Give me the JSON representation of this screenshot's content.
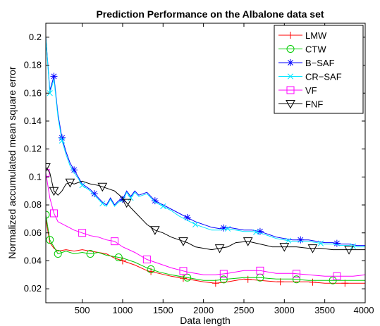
{
  "chart_data": {
    "type": "line",
    "title": "Prediction Performance on the Albalone data set",
    "xlabel": "Data length",
    "ylabel": "Normalized accumulated mean square error",
    "xlim": [
      50,
      4000
    ],
    "ylim": [
      0.01,
      0.21
    ],
    "xticks": [
      500,
      1000,
      1500,
      2000,
      2500,
      3000,
      3500,
      4000
    ],
    "yticks": [
      0.02,
      0.04,
      0.06,
      0.08,
      0.1,
      0.12,
      0.14,
      0.16,
      0.18,
      0.2
    ],
    "ytick_labels": [
      "0.02",
      "0.04",
      "0.06",
      "0.08",
      "0.1",
      "0.12",
      "0.14",
      "0.16",
      "0.18",
      "0.2"
    ],
    "grid": false,
    "legend_position": "top-right",
    "series": [
      {
        "name": "LMW",
        "color": "#ff0000",
        "marker": "plus",
        "x": [
          50,
          100,
          150,
          200,
          300,
          400,
          500,
          600,
          700,
          800,
          900,
          1000,
          1150,
          1300,
          1450,
          1600,
          1800,
          2000,
          2150,
          2300,
          2500,
          2700,
          2900,
          3100,
          3300,
          3500,
          3700,
          3850,
          4000
        ],
        "y": [
          0.07,
          0.053,
          0.049,
          0.047,
          0.048,
          0.047,
          0.048,
          0.047,
          0.046,
          0.045,
          0.042,
          0.04,
          0.037,
          0.033,
          0.031,
          0.029,
          0.027,
          0.025,
          0.024,
          0.025,
          0.027,
          0.026,
          0.025,
          0.025,
          0.025,
          0.024,
          0.024,
          0.024,
          0.024
        ]
      },
      {
        "name": "CTW",
        "color": "#00cc00",
        "marker": "circle",
        "x": [
          50,
          100,
          150,
          200,
          300,
          400,
          500,
          600,
          700,
          800,
          900,
          1000,
          1150,
          1300,
          1450,
          1600,
          1800,
          2000,
          2150,
          2300,
          2500,
          2700,
          2900,
          3100,
          3300,
          3500,
          3700,
          3850,
          4000
        ],
        "y": [
          0.073,
          0.055,
          0.05,
          0.045,
          0.047,
          0.045,
          0.046,
          0.045,
          0.046,
          0.044,
          0.043,
          0.042,
          0.039,
          0.035,
          0.032,
          0.03,
          0.028,
          0.026,
          0.026,
          0.027,
          0.028,
          0.028,
          0.027,
          0.027,
          0.026,
          0.026,
          0.026,
          0.026,
          0.026
        ]
      },
      {
        "name": "B−SAF",
        "color": "#0000ff",
        "marker": "star",
        "x": [
          50,
          100,
          150,
          200,
          250,
          300,
          350,
          400,
          450,
          500,
          550,
          600,
          650,
          700,
          750,
          800,
          850,
          900,
          950,
          1000,
          1050,
          1100,
          1150,
          1200,
          1250,
          1300,
          1350,
          1400,
          1500,
          1600,
          1700,
          1800,
          1900,
          2000,
          2100,
          2200,
          2300,
          2400,
          2500,
          2600,
          2700,
          2800,
          2900,
          3000,
          3100,
          3200,
          3300,
          3400,
          3500,
          3600,
          3700,
          3800,
          3900,
          4000
        ],
        "y": [
          0.2,
          0.162,
          0.172,
          0.145,
          0.128,
          0.118,
          0.11,
          0.105,
          0.1,
          0.095,
          0.093,
          0.091,
          0.088,
          0.085,
          0.082,
          0.08,
          0.085,
          0.08,
          0.083,
          0.084,
          0.09,
          0.086,
          0.09,
          0.087,
          0.088,
          0.089,
          0.086,
          0.083,
          0.08,
          0.077,
          0.074,
          0.071,
          0.068,
          0.066,
          0.064,
          0.063,
          0.064,
          0.063,
          0.062,
          0.062,
          0.061,
          0.059,
          0.057,
          0.056,
          0.055,
          0.055,
          0.055,
          0.054,
          0.053,
          0.053,
          0.052,
          0.052,
          0.051,
          0.051
        ]
      },
      {
        "name": "CR−SAF",
        "color": "#00e5ff",
        "marker": "x",
        "x": [
          50,
          100,
          150,
          200,
          250,
          300,
          350,
          400,
          450,
          500,
          550,
          600,
          650,
          700,
          750,
          800,
          850,
          900,
          950,
          1000,
          1050,
          1100,
          1150,
          1200,
          1250,
          1300,
          1350,
          1400,
          1500,
          1600,
          1700,
          1800,
          1900,
          2000,
          2100,
          2200,
          2300,
          2400,
          2500,
          2600,
          2700,
          2800,
          2900,
          3000,
          3100,
          3200,
          3300,
          3400,
          3500,
          3600,
          3700,
          3800,
          3900,
          4000
        ],
        "y": [
          0.2,
          0.16,
          0.17,
          0.143,
          0.126,
          0.116,
          0.108,
          0.103,
          0.099,
          0.094,
          0.092,
          0.09,
          0.087,
          0.084,
          0.081,
          0.079,
          0.084,
          0.079,
          0.082,
          0.083,
          0.089,
          0.085,
          0.089,
          0.086,
          0.087,
          0.088,
          0.085,
          0.082,
          0.079,
          0.076,
          0.072,
          0.069,
          0.066,
          0.064,
          0.062,
          0.062,
          0.063,
          0.062,
          0.061,
          0.061,
          0.06,
          0.058,
          0.056,
          0.055,
          0.054,
          0.054,
          0.054,
          0.053,
          0.052,
          0.052,
          0.051,
          0.051,
          0.05,
          0.05
        ]
      },
      {
        "name": "VF",
        "color": "#ff00ff",
        "marker": "square",
        "x": [
          50,
          100,
          150,
          200,
          300,
          400,
          500,
          600,
          700,
          800,
          900,
          1000,
          1150,
          1300,
          1450,
          1600,
          1800,
          2000,
          2150,
          2300,
          2500,
          2700,
          2900,
          3100,
          3300,
          3500,
          3700,
          3850,
          4000
        ],
        "y": [
          0.103,
          0.085,
          0.074,
          0.068,
          0.065,
          0.062,
          0.06,
          0.058,
          0.057,
          0.055,
          0.054,
          0.05,
          0.046,
          0.041,
          0.038,
          0.035,
          0.032,
          0.03,
          0.03,
          0.031,
          0.033,
          0.033,
          0.031,
          0.031,
          0.03,
          0.029,
          0.029,
          0.029,
          0.03
        ]
      },
      {
        "name": "FNF",
        "color": "#000000",
        "marker": "triangle-down",
        "x": [
          50,
          100,
          150,
          200,
          250,
          300,
          350,
          400,
          500,
          600,
          700,
          800,
          900,
          1000,
          1100,
          1200,
          1300,
          1400,
          1500,
          1600,
          1700,
          1800,
          1900,
          2000,
          2100,
          2200,
          2300,
          2400,
          2550,
          2700,
          2850,
          3000,
          3150,
          3300,
          3450,
          3600,
          3750,
          3900,
          4000
        ],
        "y": [
          0.107,
          0.103,
          0.09,
          0.087,
          0.09,
          0.095,
          0.096,
          0.095,
          0.097,
          0.095,
          0.094,
          0.092,
          0.09,
          0.085,
          0.078,
          0.072,
          0.066,
          0.062,
          0.06,
          0.057,
          0.055,
          0.053,
          0.05,
          0.049,
          0.048,
          0.049,
          0.05,
          0.053,
          0.054,
          0.052,
          0.05,
          0.05,
          0.05,
          0.049,
          0.049,
          0.048,
          0.048,
          0.048,
          0.048
        ]
      }
    ]
  }
}
